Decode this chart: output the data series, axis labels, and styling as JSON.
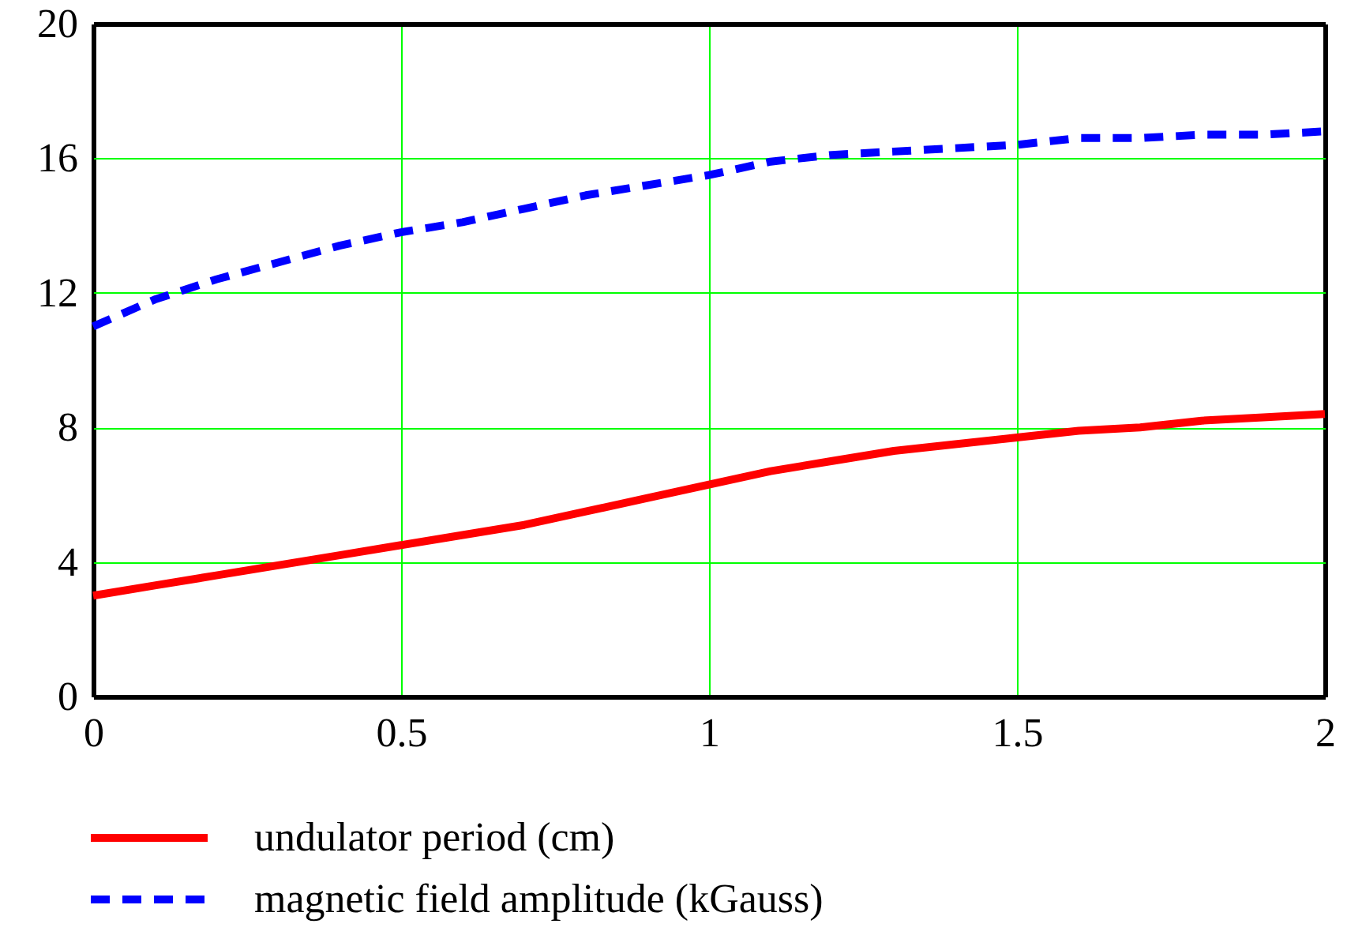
{
  "chart_data": {
    "type": "line",
    "x": [
      0,
      0.1,
      0.2,
      0.3,
      0.4,
      0.5,
      0.6,
      0.7,
      0.8,
      0.9,
      1.0,
      1.1,
      1.2,
      1.3,
      1.4,
      1.5,
      1.6,
      1.7,
      1.8,
      1.9,
      2.0
    ],
    "series": [
      {
        "name": "undulator period (cm)",
        "color": "#ff0000",
        "line_style": "solid",
        "values": [
          3.0,
          3.3,
          3.6,
          3.9,
          4.2,
          4.5,
          4.8,
          5.1,
          5.5,
          5.9,
          6.3,
          6.7,
          7.0,
          7.3,
          7.5,
          7.7,
          7.9,
          8.0,
          8.2,
          8.3,
          8.4
        ]
      },
      {
        "name": "magnetic field amplitude (kGauss)",
        "color": "#0000ff",
        "line_style": "dashed",
        "values": [
          11.0,
          11.8,
          12.4,
          12.9,
          13.4,
          13.8,
          14.1,
          14.5,
          14.9,
          15.2,
          15.5,
          15.9,
          16.1,
          16.2,
          16.3,
          16.4,
          16.6,
          16.6,
          16.7,
          16.7,
          16.8
        ]
      }
    ],
    "xlim": [
      0,
      2
    ],
    "xticks": [
      0,
      0.5,
      1,
      1.5,
      2
    ],
    "ylim": [
      0,
      20
    ],
    "yticks": [
      0,
      4,
      8,
      12,
      16,
      20
    ],
    "grid": true,
    "legend": "bottom",
    "marker": "none"
  }
}
